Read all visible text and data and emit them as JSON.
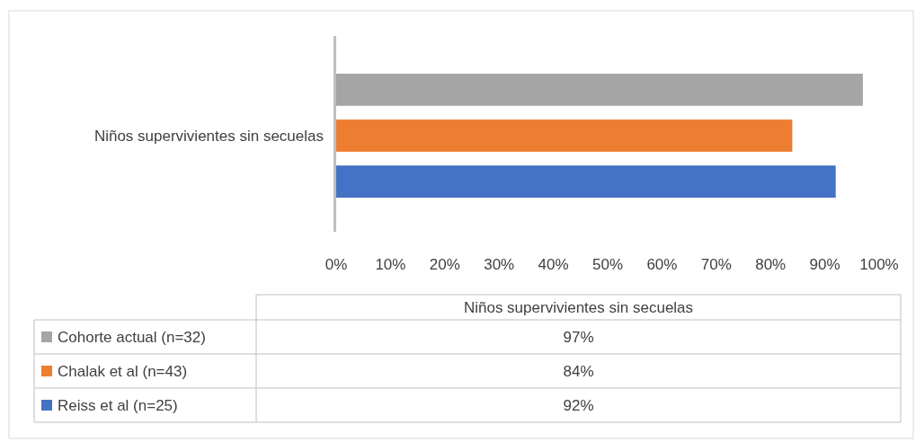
{
  "chart_data": {
    "type": "bar",
    "orientation": "horizontal",
    "categories": [
      "Niños supervivientes sin secuelas"
    ],
    "series": [
      {
        "name": "Reiss et al (n=25)",
        "color": "#4472c4",
        "values": [
          92
        ]
      },
      {
        "name": "Chalak et al (n=43)",
        "color": "#ed7d31",
        "values": [
          84
        ]
      },
      {
        "name": "Cohorte actual (n=32)",
        "color": "#a5a5a5",
        "values": [
          97
        ]
      }
    ],
    "xlim": [
      0,
      100
    ],
    "xticks": [
      {
        "value": 0,
        "label": "0%"
      },
      {
        "value": 10,
        "label": "10%"
      },
      {
        "value": 20,
        "label": "20%"
      },
      {
        "value": 30,
        "label": "30%"
      },
      {
        "value": 40,
        "label": "40%"
      },
      {
        "value": 50,
        "label": "50%"
      },
      {
        "value": 60,
        "label": "60%"
      },
      {
        "value": 70,
        "label": "70%"
      },
      {
        "value": 80,
        "label": "80%"
      },
      {
        "value": 90,
        "label": "90%"
      },
      {
        "value": 100,
        "label": "100%"
      }
    ],
    "value_labels": [
      [
        "92%"
      ],
      [
        "84%"
      ],
      [
        "97%"
      ]
    ],
    "grid": false,
    "legend": "bottom"
  }
}
